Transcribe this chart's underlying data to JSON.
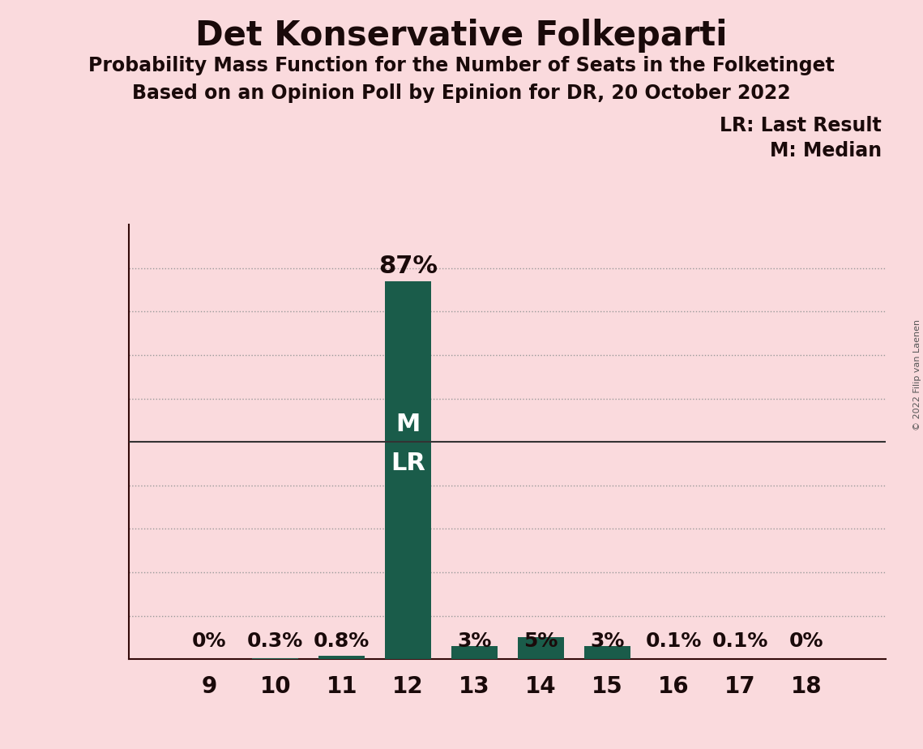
{
  "title": "Det Konservative Folkeparti",
  "subtitle1": "Probability Mass Function for the Number of Seats in the Folketinget",
  "subtitle2": "Based on an Opinion Poll by Epinion for DR, 20 October 2022",
  "copyright": "© 2022 Filip van Laenen",
  "legend_lr": "LR: Last Result",
  "legend_m": "M: Median",
  "seats": [
    9,
    10,
    11,
    12,
    13,
    14,
    15,
    16,
    17,
    18
  ],
  "probabilities": [
    0.0,
    0.3,
    0.8,
    87.0,
    3.0,
    5.0,
    3.0,
    0.1,
    0.1,
    0.0
  ],
  "bar_labels": [
    "0%",
    "0.3%",
    "0.8%",
    "",
    "3%",
    "5%",
    "3%",
    "0.1%",
    "0.1%",
    "0%"
  ],
  "bar_label_above": "87%",
  "bar_label_above_seat": 12,
  "median_seat": 12,
  "last_result_seat": 12,
  "bar_color": "#1a5c4a",
  "background_color": "#fadadd",
  "fifty_pct_line_color": "#333333",
  "grid_line_color": "#999999",
  "label_color_inside": "#ffffff",
  "label_color_outside": "#1a0a0a",
  "ylim": [
    0,
    100
  ],
  "title_fontsize": 30,
  "subtitle_fontsize": 17,
  "axis_tick_fontsize": 20,
  "label_fontsize": 18,
  "ml_fontsize": 20,
  "fifty_fontsize": 22
}
